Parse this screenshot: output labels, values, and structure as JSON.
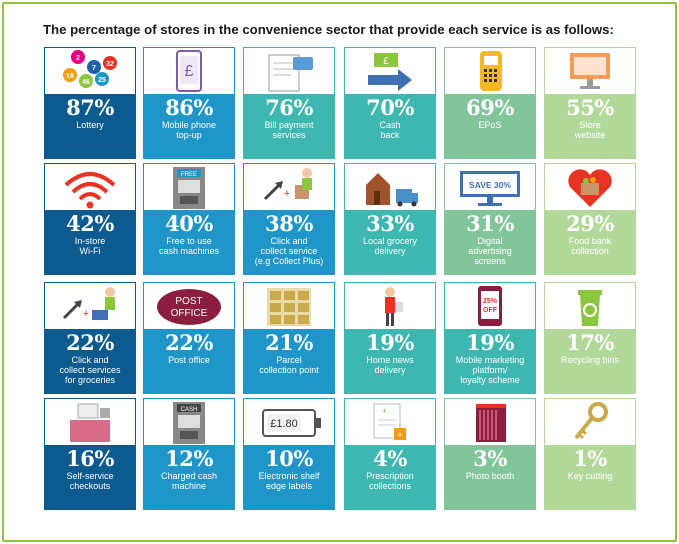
{
  "title": "The percentage of stores in the convenience sector that provide each service is as follows:",
  "colors": {
    "frame": "#8cc63f",
    "navy": "#0c5a8e",
    "blue": "#1f95c8",
    "teal": "#3db7b0",
    "green": "#83c59a",
    "lightgreen": "#b3d99a"
  },
  "chart_data": {
    "type": "table",
    "title": "The percentage of stores in the convenience sector that provide each service is as follows:",
    "unit": "%",
    "categories": [
      "Lottery",
      "Mobile phone top-up",
      "Bill payment services",
      "Cash back",
      "EPoS",
      "Store website",
      "In-store Wi-Fi",
      "Free to use cash machines",
      "Click and collect service (e.g Collect Plus)",
      "Local grocery delivery",
      "Digital advertising screens",
      "Food bank collection",
      "Click and collect services for groceries",
      "Post office",
      "Parcel collection point",
      "Home news delivery",
      "Mobile marketing platform/ loyalty scheme",
      "Recycling bins",
      "Self-service checkouts",
      "Charged cash machine",
      "Electronic shelf edge labels",
      "Prescription collections",
      "Photo booth",
      "Key cutting"
    ],
    "values": [
      87,
      86,
      76,
      70,
      69,
      55,
      42,
      40,
      38,
      33,
      31,
      29,
      22,
      22,
      21,
      19,
      19,
      17,
      16,
      12,
      10,
      4,
      3,
      1
    ]
  },
  "tiles": [
    {
      "pct": "87%",
      "label": "Lottery",
      "icon": "lottery-balls-icon",
      "color": "navy",
      "balls": [
        "2",
        "7",
        "32",
        "18",
        "25",
        "46"
      ]
    },
    {
      "pct": "86%",
      "label": "Mobile phone\ntop-up",
      "icon": "mobile-phone-pound-icon",
      "color": "blue",
      "glyph": "£"
    },
    {
      "pct": "76%",
      "label": "Bill payment\nservices",
      "icon": "bill-card-icon",
      "color": "teal"
    },
    {
      "pct": "70%",
      "label": "Cash\nback",
      "icon": "cash-back-arrow-icon",
      "color": "teal",
      "glyph": "£"
    },
    {
      "pct": "69%",
      "label": "EPoS",
      "icon": "card-terminal-icon",
      "color": "green"
    },
    {
      "pct": "55%",
      "label": "Store\nwebsite",
      "icon": "computer-monitor-icon",
      "color": "lightgreen"
    },
    {
      "pct": "42%",
      "label": "In-store\nWi-Fi",
      "icon": "wifi-icon",
      "color": "navy"
    },
    {
      "pct": "40%",
      "label": "Free to use\ncash machines",
      "icon": "atm-free-icon",
      "color": "blue",
      "glyph": "FREE"
    },
    {
      "pct": "38%",
      "label": "Click and\ncollect service\n(e.g  Collect Plus)",
      "icon": "click-collect-parcel-icon",
      "color": "blue"
    },
    {
      "pct": "33%",
      "label": "Local grocery\ndelivery",
      "icon": "house-van-icon",
      "color": "teal"
    },
    {
      "pct": "31%",
      "label": "Digital\nadvertising\nscreens",
      "icon": "advertising-screen-icon",
      "color": "green",
      "glyph": "SAVE 30%"
    },
    {
      "pct": "29%",
      "label": "Food bank\ncollection",
      "icon": "heart-basket-icon",
      "color": "lightgreen"
    },
    {
      "pct": "22%",
      "label": "Click and\ncollect services\nfor groceries",
      "icon": "click-collect-basket-icon",
      "color": "navy"
    },
    {
      "pct": "22%",
      "label": "Post office",
      "icon": "post-office-sign-icon",
      "color": "blue",
      "glyph": "POST\nOFFICE"
    },
    {
      "pct": "21%",
      "label": "Parcel\ncollection point",
      "icon": "parcel-lockers-icon",
      "color": "blue"
    },
    {
      "pct": "19%",
      "label": "Home news\ndelivery",
      "icon": "paperboy-icon",
      "color": "teal"
    },
    {
      "pct": "19%",
      "label": "Mobile marketing\nplatform/\nloyalty scheme",
      "icon": "phone-offer-icon",
      "color": "teal",
      "glyph": "25%\nOFF"
    },
    {
      "pct": "17%",
      "label": "Recycling bins",
      "icon": "recycling-bin-icon",
      "color": "lightgreen"
    },
    {
      "pct": "16%",
      "label": "Self-service\ncheckouts",
      "icon": "self-checkout-icon",
      "color": "navy"
    },
    {
      "pct": "12%",
      "label": "Charged cash\nmachine",
      "icon": "atm-cash-icon",
      "color": "blue",
      "glyph": "CASH"
    },
    {
      "pct": "10%",
      "label": "Electronic shelf\nedge labels",
      "icon": "shelf-label-icon",
      "color": "blue",
      "glyph": "£1.80"
    },
    {
      "pct": "4%",
      "label": "Prescription\ncollections",
      "icon": "prescription-icon",
      "color": "teal"
    },
    {
      "pct": "3%",
      "label": "Photo booth",
      "icon": "photo-booth-icon",
      "color": "green"
    },
    {
      "pct": "1%",
      "label": "Key cutting",
      "icon": "key-icon",
      "color": "lightgreen"
    }
  ]
}
